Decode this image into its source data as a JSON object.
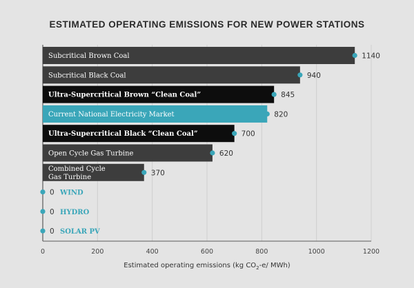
{
  "chart_data": {
    "type": "bar",
    "orientation": "horizontal",
    "title": "ESTIMATED OPERATING EMISSIONS FOR NEW POWER STATIONS",
    "xlabel_main": "Estimated operating emissions (kg CO",
    "xlabel_sub": "2",
    "xlabel_tail": "-e/ MWh)",
    "xlim": [
      0,
      1200
    ],
    "xticks": [
      "0",
      "200",
      "400",
      "600",
      "800",
      "1000",
      "1200"
    ],
    "grid": true,
    "categories": [
      "Subcritical Brown Coal",
      "Subcritical Black Coal",
      "Ultra-Supercritical Brown “Clean Coal”",
      "Current National Electricity Market",
      "Ultra-Supercritical Black “Clean Coal”",
      "Open Cycle Gas Turbine",
      "Combined Cycle Gas Turbine",
      "WIND",
      "HYDRO",
      "SOLAR PV"
    ],
    "label_lines": [
      [
        "Subcritical Brown Coal"
      ],
      [
        "Subcritical Black Coal"
      ],
      [
        "Ultra-Supercritical Brown “Clean Coal”"
      ],
      [
        "Current National Electricity Market"
      ],
      [
        "Ultra-Supercritical Black “Clean Coal”"
      ],
      [
        "Open Cycle Gas Turbine"
      ],
      [
        "Combined Cycle",
        "Gas Turbine"
      ],
      [
        "WIND"
      ],
      [
        "HYDRO"
      ],
      [
        "SOLAR PV"
      ]
    ],
    "values": [
      1140,
      940,
      845,
      820,
      700,
      620,
      370,
      0,
      0,
      0
    ],
    "value_labels": [
      "1140",
      "940",
      "845",
      "820",
      "700",
      "620",
      "370",
      "0",
      "0",
      "0"
    ],
    "bar_colors": [
      "#3d3d3d",
      "#3d3d3d",
      "#0d0d0d",
      "#3aa6b9",
      "#0d0d0d",
      "#3d3d3d",
      "#3d3d3d",
      "#3aa6b9",
      "#3aa6b9",
      "#3aa6b9"
    ],
    "bold_labels": [
      false,
      false,
      true,
      false,
      true,
      false,
      false,
      true,
      true,
      true
    ],
    "accent_color": "#3aa6b9"
  }
}
